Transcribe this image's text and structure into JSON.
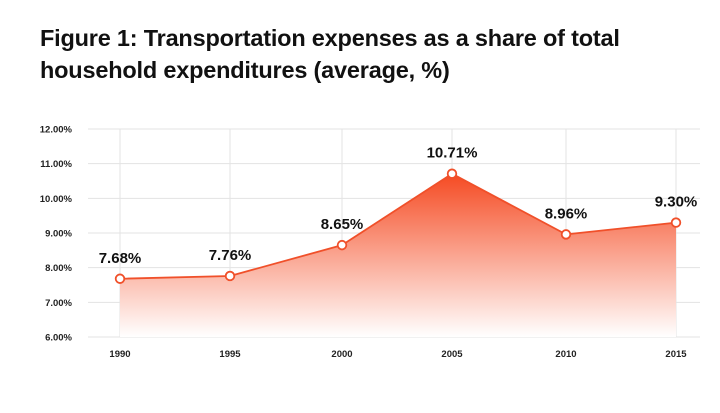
{
  "title_line1": "Figure 1: Transportation expenses as a share of total",
  "title_line2": "household expenditures (average, %)",
  "colors": {
    "accent": "#f0502a",
    "area_top": "#f54a22",
    "area_bottom": "#ffffff",
    "grid": "#e3e3e3",
    "marker_fill": "#ffffff"
  },
  "chart_data": {
    "type": "area",
    "title": "Figure 1: Transportation expenses as a share of total household expenditures (average, %)",
    "xlabel": "",
    "ylabel": "",
    "categories": [
      "1990",
      "1995",
      "2000",
      "2005",
      "2010",
      "2015"
    ],
    "series": [
      {
        "values": [
          7.68,
          7.76,
          8.65,
          10.71,
          8.96,
          9.3
        ],
        "labels": [
          "7.68%",
          "7.76%",
          "8.65%",
          "10.71%",
          "8.96%",
          "9.30%"
        ]
      }
    ],
    "ylim": [
      6,
      12
    ],
    "yticks": [
      6,
      7,
      8,
      9,
      10,
      11,
      12
    ],
    "ytick_labels": [
      "6.00%",
      "7.00%",
      "8.00%",
      "9.00%",
      "10.00%",
      "11.00%",
      "12.00%"
    ],
    "grid": true,
    "legend": "none"
  }
}
